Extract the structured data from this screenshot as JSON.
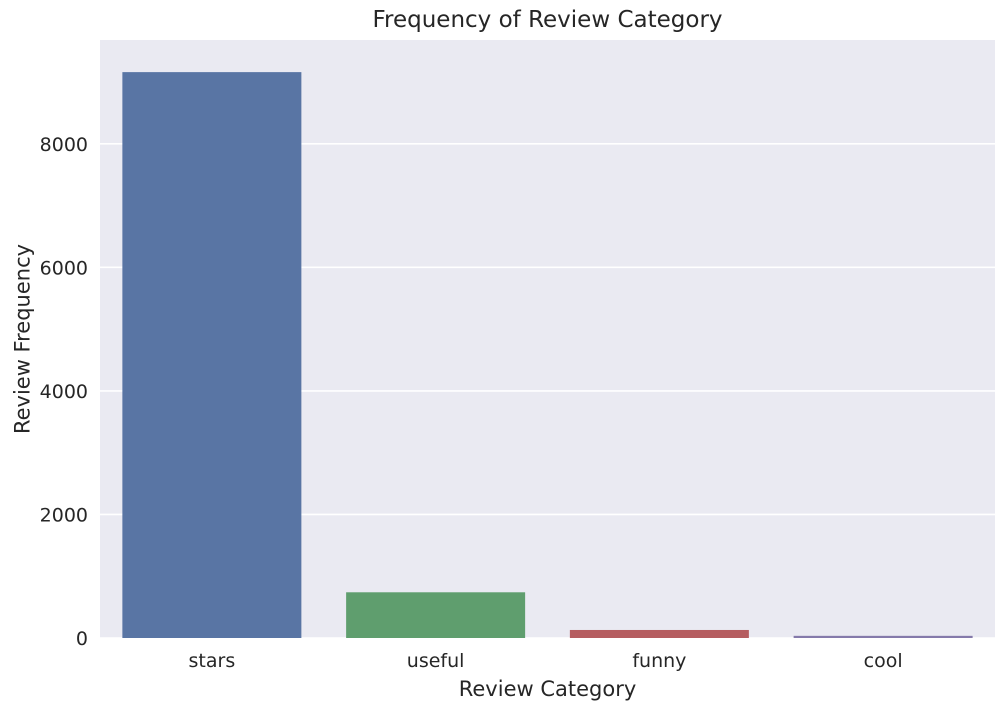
{
  "chart_data": {
    "type": "bar",
    "title": "Frequency of Review Category",
    "xlabel": "Review Category",
    "ylabel": "Review Frequency",
    "categories": [
      "stars",
      "useful",
      "funny",
      "cool"
    ],
    "values": [
      9160,
      740,
      130,
      35
    ],
    "colors": [
      "#5975a4",
      "#5f9e6e",
      "#b55d60",
      "#857aab"
    ],
    "ylim": [
      0,
      9680
    ],
    "yticks": [
      0,
      2000,
      4000,
      6000,
      8000
    ],
    "grid": true,
    "background": "#eaeaf2",
    "legend": "none"
  }
}
